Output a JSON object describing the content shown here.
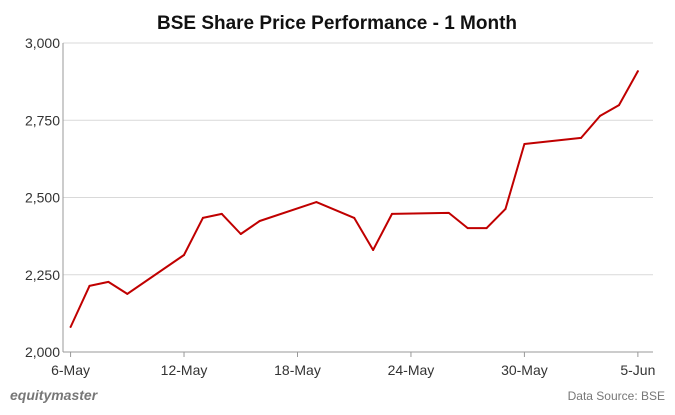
{
  "chart_data": {
    "type": "line",
    "title": "BSE Share Price Performance - 1 Month",
    "xlabel": "",
    "ylabel": "",
    "ylim": [
      2000,
      3000
    ],
    "yticks": [
      2000,
      2250,
      2500,
      2750,
      3000
    ],
    "ytick_labels": [
      "2,000",
      "2,250",
      "2,500",
      "2,750",
      "3,000"
    ],
    "xtick_labels": [
      "6-May",
      "12-May",
      "18-May",
      "24-May",
      "30-May",
      "5-Jun"
    ],
    "xtick_days": [
      0,
      6,
      12,
      18,
      24,
      30
    ],
    "x_range_days": [
      -0.4,
      30.8
    ],
    "grid": true,
    "line_color": "#c00000",
    "series": [
      {
        "name": "BSE",
        "dates": [
          "6-May",
          "7-May",
          "8-May",
          "9-May",
          "12-May",
          "13-May",
          "14-May",
          "15-May",
          "16-May",
          "19-May",
          "21-May",
          "22-May",
          "23-May",
          "26-May",
          "27-May",
          "28-May",
          "29-May",
          "30-May",
          "2-Jun",
          "3-Jun",
          "4-Jun",
          "5-Jun"
        ],
        "days": [
          0,
          1,
          2,
          3,
          6,
          7,
          8,
          9,
          10,
          13,
          15,
          16,
          17,
          20,
          21,
          22,
          23,
          24,
          27,
          28,
          29,
          30
        ],
        "values": [
          2081,
          2214,
          2227,
          2188,
          2314,
          2434,
          2447,
          2382,
          2424,
          2485,
          2434,
          2330,
          2447,
          2450,
          2401,
          2401,
          2463,
          2673,
          2693,
          2764,
          2799,
          2909
        ]
      }
    ]
  },
  "footer": {
    "brand": "equitymaster",
    "source": "Data Source: BSE"
  }
}
